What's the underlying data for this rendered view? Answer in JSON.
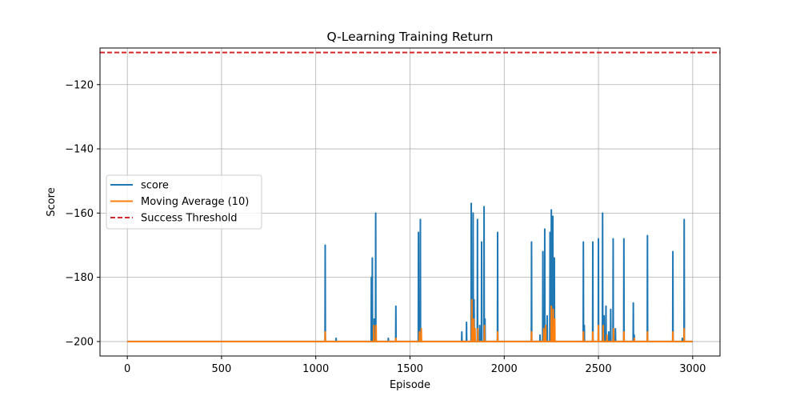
{
  "chart_data": {
    "type": "line",
    "title": "Q-Learning Training Return",
    "xlabel": "Episode",
    "ylabel": "Score",
    "xlim": [
      -145,
      3145
    ],
    "ylim": [
      -204.5,
      -108.6
    ],
    "xticks": [
      0,
      500,
      1000,
      1500,
      2000,
      2500,
      3000
    ],
    "xtick_labels": [
      "0",
      "500",
      "1000",
      "1500",
      "2000",
      "2500",
      "3000"
    ],
    "yticks": [
      -200,
      -180,
      -160,
      -140,
      -120
    ],
    "ytick_labels": [
      "−200",
      "−180",
      "−160",
      "−140",
      "−120"
    ],
    "grid": true,
    "legend_position": "center-left",
    "baseline": -200,
    "episodes": 3000,
    "series": [
      {
        "name": "score",
        "color": "#1f77b4",
        "style": "solid",
        "spikes": [
          [
            1050,
            -170
          ],
          [
            1108,
            -199
          ],
          [
            1295,
            -180
          ],
          [
            1300,
            -174
          ],
          [
            1310,
            -193
          ],
          [
            1318,
            -160
          ],
          [
            1385,
            -199
          ],
          [
            1425,
            -189
          ],
          [
            1545,
            -166
          ],
          [
            1555,
            -162
          ],
          [
            1775,
            -197
          ],
          [
            1800,
            -194
          ],
          [
            1825,
            -157
          ],
          [
            1835,
            -160
          ],
          [
            1840,
            -187
          ],
          [
            1858,
            -162
          ],
          [
            1870,
            -195
          ],
          [
            1880,
            -169
          ],
          [
            1893,
            -158
          ],
          [
            1898,
            -193
          ],
          [
            1965,
            -166
          ],
          [
            2145,
            -169
          ],
          [
            2190,
            -198
          ],
          [
            2205,
            -172
          ],
          [
            2215,
            -165
          ],
          [
            2228,
            -192
          ],
          [
            2243,
            -166
          ],
          [
            2250,
            -159
          ],
          [
            2258,
            -161
          ],
          [
            2266,
            -174
          ],
          [
            2420,
            -169
          ],
          [
            2425,
            -195
          ],
          [
            2470,
            -169
          ],
          [
            2500,
            -168
          ],
          [
            2522,
            -160
          ],
          [
            2530,
            -192
          ],
          [
            2540,
            -189
          ],
          [
            2555,
            -197
          ],
          [
            2565,
            -190
          ],
          [
            2578,
            -168
          ],
          [
            2590,
            -196
          ],
          [
            2635,
            -168
          ],
          [
            2685,
            -188
          ],
          [
            2690,
            -198
          ],
          [
            2760,
            -167
          ],
          [
            2895,
            -172
          ],
          [
            2945,
            -199
          ],
          [
            2955,
            -162
          ]
        ]
      },
      {
        "name": "Moving Average (10)",
        "color": "#ff7f0e",
        "style": "solid",
        "spikes": [
          [
            1050,
            -197
          ],
          [
            1308,
            -195
          ],
          [
            1320,
            -195
          ],
          [
            1425,
            -199
          ],
          [
            1550,
            -197
          ],
          [
            1560,
            -196
          ],
          [
            1828,
            -187
          ],
          [
            1838,
            -193
          ],
          [
            1845,
            -196
          ],
          [
            1860,
            -196
          ],
          [
            1895,
            -195
          ],
          [
            1965,
            -197
          ],
          [
            2145,
            -197
          ],
          [
            2210,
            -196
          ],
          [
            2220,
            -195
          ],
          [
            2250,
            -189
          ],
          [
            2260,
            -190
          ],
          [
            2268,
            -193
          ],
          [
            2420,
            -197
          ],
          [
            2470,
            -197
          ],
          [
            2500,
            -195
          ],
          [
            2525,
            -195
          ],
          [
            2545,
            -198
          ],
          [
            2580,
            -196
          ],
          [
            2635,
            -197
          ],
          [
            2690,
            -199
          ],
          [
            2760,
            -197
          ],
          [
            2895,
            -197
          ],
          [
            2955,
            -196
          ]
        ]
      },
      {
        "name": "Success Threshold",
        "color": "#d62728",
        "style": "dashed",
        "value": -110
      }
    ]
  }
}
